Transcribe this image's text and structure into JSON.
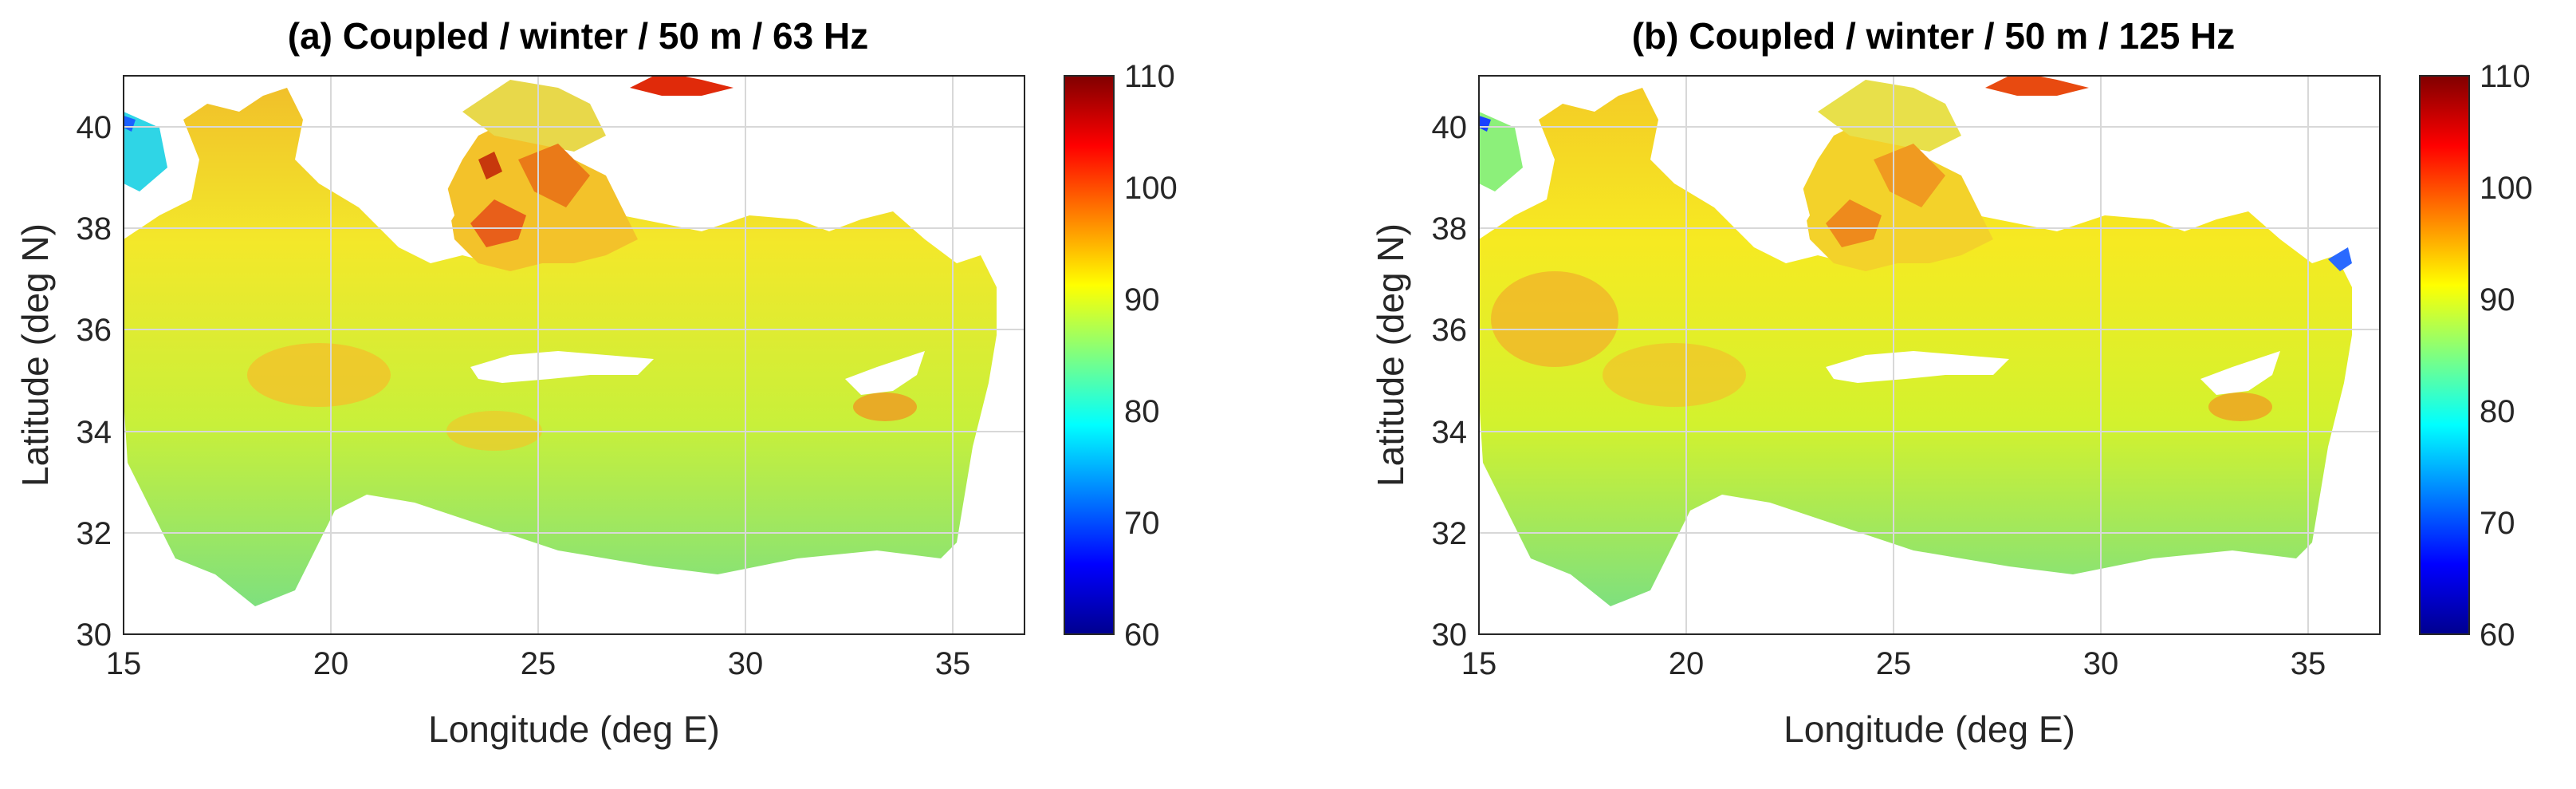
{
  "panels": [
    {
      "id": "a",
      "title": "(a) Coupled / winter / 50 m / 63 Hz",
      "xlabel": "Longitude (deg E)",
      "ylabel": "Latitude (deg N)",
      "xticks": [
        "15",
        "20",
        "25",
        "30",
        "35"
      ],
      "yticks": [
        "30",
        "32",
        "34",
        "36",
        "38",
        "40"
      ],
      "colorbar_ticks": [
        "60",
        "70",
        "80",
        "90",
        "100",
        "110"
      ]
    },
    {
      "id": "b",
      "title": "(b) Coupled / winter / 50 m / 125 Hz",
      "xlabel": "Longitude (deg E)",
      "ylabel": "Latitude (deg N)",
      "xticks": [
        "15",
        "20",
        "25",
        "30",
        "35"
      ],
      "yticks": [
        "30",
        "32",
        "34",
        "36",
        "38",
        "40"
      ],
      "colorbar_ticks": [
        "60",
        "70",
        "80",
        "90",
        "100",
        "110"
      ]
    }
  ],
  "chart_data": [
    {
      "type": "heatmap",
      "title": "(a) Coupled / winter / 50 m / 63 Hz",
      "xlabel": "Longitude (deg E)",
      "ylabel": "Latitude (deg N)",
      "xlim": [
        15,
        36.5
      ],
      "ylim": [
        30,
        41
      ],
      "clim": [
        60,
        110
      ],
      "colormap": "jet",
      "grid": true
    },
    {
      "type": "heatmap",
      "title": "(b) Coupled / winter / 50 m / 125 Hz",
      "xlabel": "Longitude (deg E)",
      "ylabel": "Latitude (deg N)",
      "xlim": [
        15,
        36.5
      ],
      "ylim": [
        30,
        41
      ],
      "clim": [
        60,
        110
      ],
      "colormap": "jet",
      "grid": true
    }
  ]
}
